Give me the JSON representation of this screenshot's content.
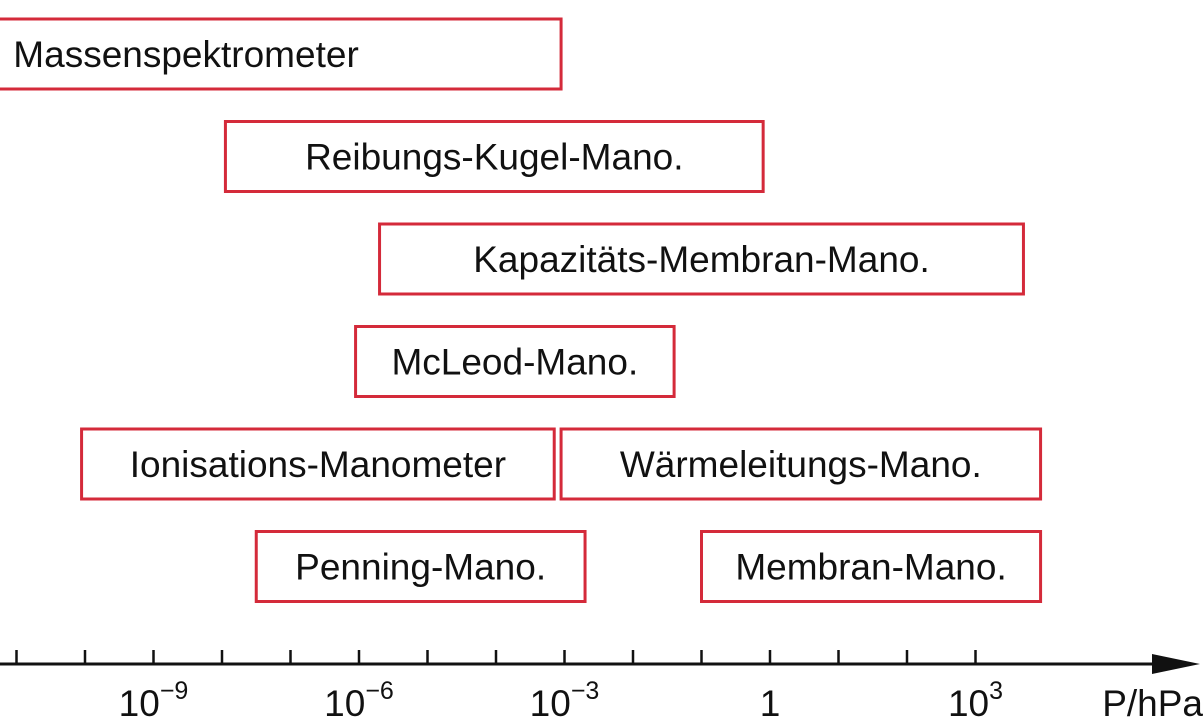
{
  "chart_data": {
    "type": "range-bar",
    "xaxis": {
      "scale": "log",
      "unit_label": "P/hPa",
      "xlim_exponent": [
        -13.7,
        3.3
      ],
      "minor_tick_step_decades": 1,
      "tick_labels": [
        {
          "exponent": -9,
          "base": "10",
          "sup": "−9"
        },
        {
          "exponent": -6,
          "base": "10",
          "sup": "−6"
        },
        {
          "exponent": -3,
          "base": "10",
          "sup": "−3"
        },
        {
          "exponent": 0,
          "base": "1",
          "sup": ""
        },
        {
          "exponent": 3,
          "base": "10",
          "sup": "3"
        }
      ]
    },
    "bars": [
      {
        "label": "Massenspektrometer",
        "row": 0,
        "from_exponent": -14,
        "to_exponent": -3.05
      },
      {
        "label": "Reibungs-Kugel-Mano.",
        "row": 1,
        "from_exponent": -7.95,
        "to_exponent": -0.1
      },
      {
        "label": "Kapazitäts-Membran-Mano.",
        "row": 2,
        "from_exponent": -5.7,
        "to_exponent": 3.7
      },
      {
        "label": "McLeod-Mano.",
        "row": 3,
        "from_exponent": -6.05,
        "to_exponent": -1.4
      },
      {
        "label": "Ionisations-Manometer",
        "row": 4,
        "from_exponent": -10.05,
        "to_exponent": -3.15
      },
      {
        "label": "Wärmeleitungs-Mano.",
        "row": 4,
        "from_exponent": -3.05,
        "to_exponent": 3.95
      },
      {
        "label": "Penning-Mano.",
        "row": 5,
        "from_exponent": -7.5,
        "to_exponent": -2.7
      },
      {
        "label": "Membran-Mano.",
        "row": 5,
        "from_exponent": -1.0,
        "to_exponent": 3.95
      }
    ],
    "colors": {
      "bar_border": "#d42a3a",
      "axis": "#111111",
      "text": "#111111"
    }
  }
}
